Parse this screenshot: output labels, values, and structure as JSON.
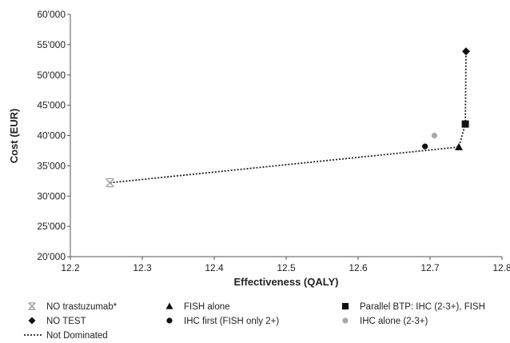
{
  "chart_data": {
    "type": "scatter",
    "xlabel": "Effectiveness (QALY)",
    "ylabel": "Cost (EUR)",
    "xlim": [
      12.2,
      12.8
    ],
    "ylim": [
      20000,
      60000
    ],
    "x_ticks": [
      {
        "value": 12.2,
        "label": "12.2"
      },
      {
        "value": 12.3,
        "label": "12.3"
      },
      {
        "value": 12.4,
        "label": "12.4"
      },
      {
        "value": 12.5,
        "label": "12.5"
      },
      {
        "value": 12.6,
        "label": "12.6"
      },
      {
        "value": 12.7,
        "label": "12.7"
      },
      {
        "value": 12.8,
        "label": "12.8"
      }
    ],
    "y_ticks": [
      {
        "value": 20000,
        "label": "20'000"
      },
      {
        "value": 25000,
        "label": "25'000"
      },
      {
        "value": 30000,
        "label": "30'000"
      },
      {
        "value": 35000,
        "label": "35'000"
      },
      {
        "value": 40000,
        "label": "40'000"
      },
      {
        "value": 45000,
        "label": "45'000"
      },
      {
        "value": 50000,
        "label": "50'000"
      },
      {
        "value": 55000,
        "label": "55'000"
      },
      {
        "value": 60000,
        "label": "60'000"
      }
    ],
    "grid": false,
    "legend_position": "bottom",
    "series": [
      {
        "name": "NO trastuzumab*",
        "marker": "asterisk",
        "color": "#9a9a9a",
        "x": 12.255,
        "y": 32200
      },
      {
        "name": "NO TEST",
        "marker": "diamond",
        "color": "#111111",
        "x": 12.75,
        "y": 53900
      },
      {
        "name": "FISH alone",
        "marker": "triangle",
        "color": "#111111",
        "x": 12.74,
        "y": 38100
      },
      {
        "name": "IHC first (FISH only 2+)",
        "marker": "circle",
        "color": "#111111",
        "x": 12.693,
        "y": 38200
      },
      {
        "name": "Parallel BTP: IHC (2-3+), FISH",
        "marker": "square",
        "color": "#111111",
        "x": 12.749,
        "y": 41900
      },
      {
        "name": "IHC alone (2-3+)",
        "marker": "circle",
        "color": "#a8a8a8",
        "x": 12.706,
        "y": 40000
      }
    ],
    "frontier": {
      "name": "Not Dominated",
      "style": "dotted",
      "points": [
        {
          "x": 12.255,
          "y": 32200
        },
        {
          "x": 12.74,
          "y": 38100
        },
        {
          "x": 12.749,
          "y": 41900
        },
        {
          "x": 12.75,
          "y": 53900
        }
      ]
    }
  }
}
